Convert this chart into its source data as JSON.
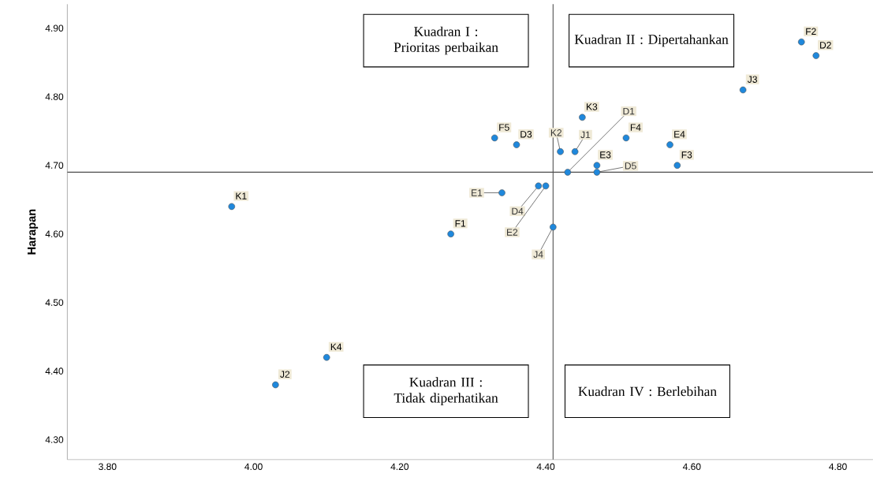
{
  "chart_data": {
    "type": "scatter",
    "ylabel": "Harapan",
    "color": "#1f88dc",
    "marker": "circle",
    "x": [
      3.97,
      4.03,
      4.1,
      4.27,
      4.33,
      4.36,
      4.34,
      4.39,
      4.4,
      4.41,
      4.42,
      4.43,
      4.44,
      4.45,
      4.47,
      4.47,
      4.51,
      4.57,
      4.58,
      4.67,
      4.75,
      4.77
    ],
    "values": [
      4.64,
      4.38,
      4.42,
      4.6,
      4.74,
      4.73,
      4.66,
      4.67,
      4.67,
      4.61,
      4.72,
      4.69,
      4.72,
      4.77,
      4.7,
      4.69,
      4.74,
      4.73,
      4.7,
      4.81,
      4.88,
      4.86
    ],
    "xlim": [
      3.745,
      4.848
    ],
    "ylim": [
      4.271,
      4.935
    ],
    "xticks": [
      {
        "value": 3.8,
        "label": "3.80"
      },
      {
        "value": 4.0,
        "label": "4.00"
      },
      {
        "value": 4.2,
        "label": "4.20"
      },
      {
        "value": 4.4,
        "label": "4.40"
      },
      {
        "value": 4.6,
        "label": "4.60"
      },
      {
        "value": 4.8,
        "label": "4.80"
      }
    ],
    "yticks": [
      {
        "value": 4.3,
        "label": "4.30"
      },
      {
        "value": 4.4,
        "label": "4.40"
      },
      {
        "value": 4.5,
        "label": "4.50"
      },
      {
        "value": 4.6,
        "label": "4.60"
      },
      {
        "value": 4.7,
        "label": "4.70"
      },
      {
        "value": 4.8,
        "label": "4.80"
      },
      {
        "value": 4.9,
        "label": "4.90"
      }
    ],
    "ref_lines": [
      {
        "axis": "x",
        "value": 4.41
      },
      {
        "axis": "y",
        "value": 4.69
      }
    ],
    "annotations": [
      "Kuadran I : Prioritas perbaikan",
      "Kuadran II : Dipertahankan",
      "Kuadran III : Tidak diperhatikan",
      "Kuadran IV : Berlebihan",
      {
        "text": "K1",
        "x": 3.97,
        "y": 4.64
      },
      {
        "text": "J2",
        "x": 4.03,
        "y": 4.38
      },
      {
        "text": "K4",
        "x": 4.1,
        "y": 4.42
      },
      {
        "text": "F1",
        "x": 4.27,
        "y": 4.6
      },
      {
        "text": "F5",
        "x": 4.33,
        "y": 4.74
      },
      {
        "text": "D3",
        "x": 4.36,
        "y": 4.73
      },
      {
        "text": "E1",
        "x": 4.34,
        "y": 4.66
      },
      {
        "text": "D4",
        "x": 4.39,
        "y": 4.67
      },
      {
        "text": "E2",
        "x": 4.4,
        "y": 4.67
      },
      {
        "text": "J4",
        "x": 4.41,
        "y": 4.61
      },
      {
        "text": "K2",
        "x": 4.42,
        "y": 4.72
      },
      {
        "text": "D1",
        "x": 4.43,
        "y": 4.69
      },
      {
        "text": "J1",
        "x": 4.44,
        "y": 4.72
      },
      {
        "text": "K3",
        "x": 4.45,
        "y": 4.77
      },
      {
        "text": "E3",
        "x": 4.47,
        "y": 4.7
      },
      {
        "text": "D5",
        "x": 4.47,
        "y": 4.69
      },
      {
        "text": "F4",
        "x": 4.51,
        "y": 4.74
      },
      {
        "text": "E4",
        "x": 4.57,
        "y": 4.73
      },
      {
        "text": "F3",
        "x": 4.58,
        "y": 4.7
      },
      {
        "text": "J3",
        "x": 4.67,
        "y": 4.81
      },
      {
        "text": "F2",
        "x": 4.75,
        "y": 4.88
      },
      {
        "text": "D2",
        "x": 4.77,
        "y": 4.86
      }
    ]
  }
}
